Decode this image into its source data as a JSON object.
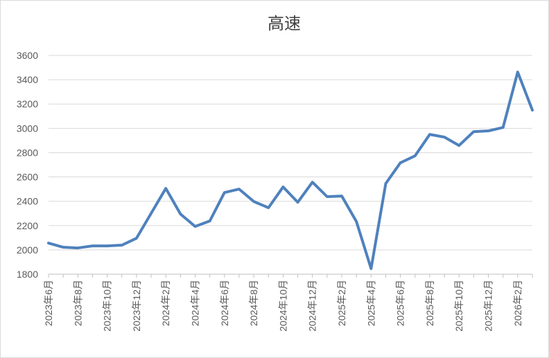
{
  "chart_data": {
    "type": "line",
    "title": "高速",
    "categories": [
      "2023年6月",
      null,
      "2023年8月",
      null,
      "2023年10月",
      null,
      "2023年12月",
      null,
      "2024年2月",
      null,
      "2024年4月",
      null,
      "2024年6月",
      null,
      "2024年8月",
      null,
      "2024年10月",
      null,
      "2024年12月",
      null,
      "2025年2月",
      null,
      "2025年4月",
      null,
      "2025年6月",
      null,
      "2025年8月",
      null,
      "2025年10月",
      null,
      "2025年12月",
      null,
      "2026年2月",
      null
    ],
    "values": [
      2056,
      2022,
      2016,
      2033,
      2033,
      2039,
      2096,
      2301,
      2506,
      2295,
      2193,
      2238,
      2472,
      2500,
      2398,
      2347,
      2518,
      2392,
      2557,
      2438,
      2443,
      2233,
      1846,
      2546,
      2717,
      2774,
      2950,
      2928,
      2859,
      2973,
      2979,
      3007,
      3463,
      3150
    ],
    "color": "#4f81bd",
    "ylim": [
      1800,
      3600
    ],
    "yticks": [
      1800,
      2000,
      2200,
      2400,
      2600,
      2800,
      3000,
      3200,
      3400,
      3600
    ],
    "grid": true
  }
}
